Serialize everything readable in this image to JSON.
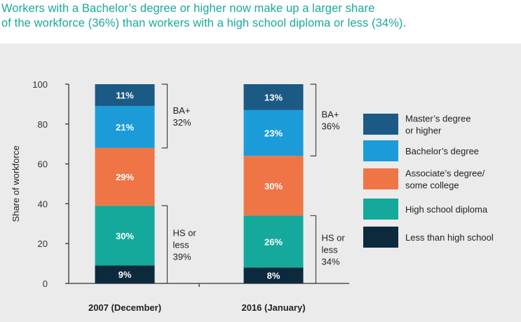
{
  "headline": {
    "line1": "Workers with a Bachelor’s degree or higher now make up a larger share",
    "line2": "of the workforce (36%) than workers with a high school diploma or less (34%)."
  },
  "colors": {
    "headline": "#17a99a",
    "panel_bg": "#ebebeb",
    "Master's degree or higher": "#1c5a86",
    "Bachelor's degree": "#1b9cd9",
    "Associate's degree/some college": "#f07546",
    "High school diploma": "#14a99b",
    "Less than high school": "#0c2a3d"
  },
  "chart_data": {
    "type": "bar",
    "stacked": true,
    "ylabel": "Share of workforce",
    "ylim": [
      0,
      100
    ],
    "yticks": [
      "0",
      "20",
      "40",
      "60",
      "80",
      "100"
    ],
    "categories": [
      "2007 (December)",
      "2016 (January)"
    ],
    "series": [
      {
        "name": "Less than high school",
        "values": [
          9,
          8
        ],
        "labels": [
          "9%",
          "8%"
        ]
      },
      {
        "name": "High school diploma",
        "values": [
          30,
          26
        ],
        "labels": [
          "30%",
          "26%"
        ]
      },
      {
        "name": "Associate's degree/some college",
        "values": [
          29,
          30
        ],
        "labels": [
          "29%",
          "30%"
        ]
      },
      {
        "name": "Bachelor's degree",
        "values": [
          21,
          23
        ],
        "labels": [
          "21%",
          "23%"
        ]
      },
      {
        "name": "Master's degree or higher",
        "values": [
          11,
          13
        ],
        "labels": [
          "11%",
          "13%"
        ]
      }
    ],
    "brackets": [
      {
        "lines": [
          "BA+",
          "32%"
        ]
      },
      {
        "lines": [
          "HS or",
          "less",
          "39%"
        ]
      },
      {
        "lines": [
          "BA+",
          "36%"
        ]
      },
      {
        "lines": [
          "HS or",
          "less",
          "34%"
        ]
      }
    ],
    "legend": {
      "placement": "right",
      "entries": [
        {
          "series": "Master's degree or higher",
          "lines": [
            "Master’s degree",
            "or higher"
          ]
        },
        {
          "series": "Bachelor's degree",
          "lines": [
            "Bachelor’s degree"
          ]
        },
        {
          "series": "Associate's degree/some college",
          "lines": [
            "Associate’s degree/",
            "some college"
          ]
        },
        {
          "series": "High school diploma",
          "lines": [
            "High school diploma"
          ]
        },
        {
          "series": "Less than high school",
          "lines": [
            "Less than high school"
          ]
        }
      ]
    },
    "grid": false
  }
}
